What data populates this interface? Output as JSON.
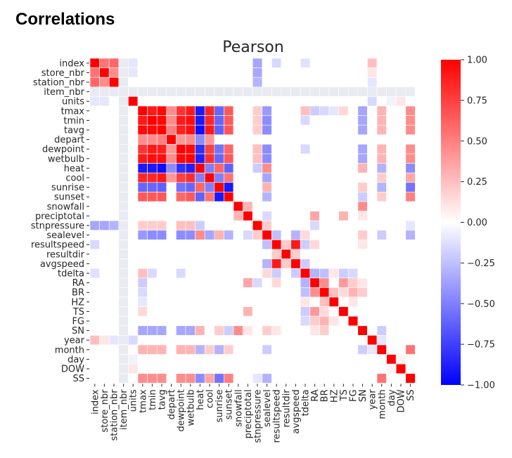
{
  "section_title": "Correlations",
  "chart_data": {
    "type": "heatmap",
    "title": "Pearson",
    "xlabel": "",
    "ylabel": "",
    "labels": [
      "index",
      "store_nbr",
      "station_nbr",
      "item_nbr",
      "units",
      "tmax",
      "tmin",
      "tavg",
      "depart",
      "dewpoint",
      "wetbulb",
      "heat",
      "cool",
      "sunrise",
      "sunset",
      "snowfall",
      "preciptotal",
      "stnpressure",
      "sealevel",
      "resultspeed",
      "resultdir",
      "avgspeed",
      "tdelta",
      "RA",
      "BR",
      "HZ",
      "TS",
      "FG",
      "SN",
      "year",
      "month",
      "day",
      "DOW",
      "SS"
    ],
    "colorbar": {
      "min": -1.0,
      "max": 1.0,
      "ticks": [
        "1.00",
        "0.75",
        "0.50",
        "0.25",
        "0.00",
        "−0.25",
        "−0.50",
        "−0.75",
        "−1.00"
      ],
      "colormap": "bwr",
      "colors": {
        "negative": "#0000ff",
        "zero": "#ffffff",
        "positive": "#ff0000",
        "missing": "#eaeaf2"
      }
    },
    "missing": [
      "item_nbr"
    ],
    "correlations": [
      [
        "index",
        "store_nbr",
        0.55
      ],
      [
        "index",
        "station_nbr",
        0.6
      ],
      [
        "store_nbr",
        "station_nbr",
        0.45
      ],
      [
        "index",
        "units",
        -0.1
      ],
      [
        "store_nbr",
        "units",
        -0.1
      ],
      [
        "index",
        "stnpressure",
        -0.35
      ],
      [
        "store_nbr",
        "stnpressure",
        -0.35
      ],
      [
        "station_nbr",
        "stnpressure",
        -0.3
      ],
      [
        "index",
        "resultspeed",
        -0.15
      ],
      [
        "index",
        "tdelta",
        -0.12
      ],
      [
        "tmax",
        "tmin",
        0.9
      ],
      [
        "tmax",
        "tavg",
        0.97
      ],
      [
        "tmax",
        "depart",
        0.45
      ],
      [
        "tmax",
        "dewpoint",
        0.8
      ],
      [
        "tmax",
        "wetbulb",
        0.9
      ],
      [
        "tmax",
        "heat",
        -0.9
      ],
      [
        "tmax",
        "cool",
        0.85
      ],
      [
        "tmax",
        "sunrise",
        -0.6
      ],
      [
        "tmax",
        "sunset",
        0.65
      ],
      [
        "tmin",
        "tavg",
        0.97
      ],
      [
        "tmin",
        "depart",
        0.45
      ],
      [
        "tmin",
        "dewpoint",
        0.9
      ],
      [
        "tmin",
        "wetbulb",
        0.95
      ],
      [
        "tmin",
        "heat",
        -0.9
      ],
      [
        "tmin",
        "cool",
        0.85
      ],
      [
        "tmin",
        "sunrise",
        -0.6
      ],
      [
        "tmin",
        "sunset",
        0.65
      ],
      [
        "tavg",
        "depart",
        0.5
      ],
      [
        "tavg",
        "dewpoint",
        0.88
      ],
      [
        "tavg",
        "wetbulb",
        0.95
      ],
      [
        "tavg",
        "heat",
        -0.95
      ],
      [
        "tavg",
        "cool",
        0.9
      ],
      [
        "tavg",
        "sunrise",
        -0.62
      ],
      [
        "tavg",
        "sunset",
        0.66
      ],
      [
        "depart",
        "dewpoint",
        0.4
      ],
      [
        "depart",
        "wetbulb",
        0.45
      ],
      [
        "depart",
        "heat",
        -0.45
      ],
      [
        "depart",
        "cool",
        0.4
      ],
      [
        "dewpoint",
        "wetbulb",
        0.97
      ],
      [
        "dewpoint",
        "heat",
        -0.82
      ],
      [
        "dewpoint",
        "cool",
        0.75
      ],
      [
        "dewpoint",
        "sunrise",
        -0.55
      ],
      [
        "dewpoint",
        "sunset",
        0.6
      ],
      [
        "wetbulb",
        "heat",
        -0.88
      ],
      [
        "wetbulb",
        "cool",
        0.82
      ],
      [
        "wetbulb",
        "sunrise",
        -0.6
      ],
      [
        "wetbulb",
        "sunset",
        0.65
      ],
      [
        "heat",
        "cool",
        -0.5
      ],
      [
        "heat",
        "sunrise",
        0.6
      ],
      [
        "heat",
        "sunset",
        -0.62
      ],
      [
        "cool",
        "sunrise",
        -0.5
      ],
      [
        "cool",
        "sunset",
        0.55
      ],
      [
        "sunrise",
        "sunset",
        -0.9
      ],
      [
        "tmax",
        "sealevel",
        -0.4
      ],
      [
        "tmin",
        "sealevel",
        -0.45
      ],
      [
        "tavg",
        "sealevel",
        -0.45
      ],
      [
        "dewpoint",
        "sealevel",
        -0.45
      ],
      [
        "wetbulb",
        "sealevel",
        -0.45
      ],
      [
        "heat",
        "sealevel",
        0.45
      ],
      [
        "cool",
        "sealevel",
        -0.35
      ],
      [
        "sunrise",
        "sealevel",
        0.3
      ],
      [
        "sunset",
        "sealevel",
        -0.3
      ],
      [
        "tmax",
        "stnpressure",
        0.2
      ],
      [
        "tmin",
        "stnpressure",
        0.2
      ],
      [
        "tavg",
        "stnpressure",
        0.2
      ],
      [
        "dewpoint",
        "stnpressure",
        0.25
      ],
      [
        "wetbulb",
        "stnpressure",
        0.25
      ],
      [
        "heat",
        "stnpressure",
        -0.2
      ],
      [
        "stnpressure",
        "sealevel",
        0.2
      ],
      [
        "tmax",
        "SN",
        -0.35
      ],
      [
        "tmin",
        "SN",
        -0.35
      ],
      [
        "tavg",
        "SN",
        -0.35
      ],
      [
        "dewpoint",
        "SN",
        -0.35
      ],
      [
        "wetbulb",
        "SN",
        -0.35
      ],
      [
        "heat",
        "SN",
        0.3
      ],
      [
        "sunrise",
        "SN",
        0.2
      ],
      [
        "sunset",
        "SN",
        -0.2
      ],
      [
        "snowfall",
        "SN",
        0.45
      ],
      [
        "tmax",
        "month",
        0.3
      ],
      [
        "tmin",
        "month",
        0.3
      ],
      [
        "tavg",
        "month",
        0.3
      ],
      [
        "dewpoint",
        "month",
        0.3
      ],
      [
        "wetbulb",
        "month",
        0.3
      ],
      [
        "heat",
        "month",
        -0.3
      ],
      [
        "cool",
        "month",
        0.2
      ],
      [
        "tmax",
        "SS",
        0.45
      ],
      [
        "tmin",
        "SS",
        0.45
      ],
      [
        "tavg",
        "SS",
        0.45
      ],
      [
        "dewpoint",
        "SS",
        0.45
      ],
      [
        "wetbulb",
        "SS",
        0.45
      ],
      [
        "heat",
        "SS",
        -0.45
      ],
      [
        "cool",
        "SS",
        0.35
      ],
      [
        "sunrise",
        "SS",
        -0.55
      ],
      [
        "sunset",
        "SS",
        0.5
      ],
      [
        "tmax",
        "tdelta",
        0.25
      ],
      [
        "tmin",
        "tdelta",
        -0.15
      ],
      [
        "dewpoint",
        "tdelta",
        -0.15
      ],
      [
        "tmax",
        "RA",
        -0.2
      ],
      [
        "tmax",
        "BR",
        -0.15
      ],
      [
        "tmax",
        "HZ",
        -0.1
      ],
      [
        "tmax",
        "TS",
        0.15
      ],
      [
        "sealevel",
        "tdelta",
        0.15
      ],
      [
        "sealevel",
        "SN",
        0.2
      ],
      [
        "sealevel",
        "month",
        -0.2
      ],
      [
        "sealevel",
        "SS",
        -0.3
      ],
      [
        "stnpressure",
        "RA",
        -0.15
      ],
      [
        "stnpressure",
        "SS",
        -0.1
      ],
      [
        "sunrise",
        "month",
        -0.3
      ],
      [
        "sunset",
        "month",
        0.2
      ],
      [
        "snowfall",
        "preciptotal",
        0.3
      ],
      [
        "preciptotal",
        "RA",
        0.35
      ],
      [
        "preciptotal",
        "TS",
        0.3
      ],
      [
        "preciptotal",
        "SN",
        0.1
      ],
      [
        "preciptotal",
        "sealevel",
        -0.15
      ],
      [
        "resultspeed",
        "avgspeed",
        0.9
      ],
      [
        "resultspeed",
        "resultdir",
        0.2
      ],
      [
        "resultdir",
        "avgspeed",
        0.2
      ],
      [
        "resultspeed",
        "sealevel",
        -0.25
      ],
      [
        "avgspeed",
        "sealevel",
        -0.3
      ],
      [
        "resultspeed",
        "tdelta",
        -0.2
      ],
      [
        "avgspeed",
        "tdelta",
        -0.2
      ],
      [
        "resultspeed",
        "RA",
        0.15
      ],
      [
        "resultspeed",
        "SN",
        0.1
      ],
      [
        "tdelta",
        "RA",
        -0.3
      ],
      [
        "tdelta",
        "BR",
        -0.25
      ],
      [
        "tdelta",
        "TS",
        -0.2
      ],
      [
        "tdelta",
        "FG",
        -0.15
      ],
      [
        "tdelta",
        "HZ",
        0.1
      ],
      [
        "RA",
        "BR",
        0.45
      ],
      [
        "RA",
        "TS",
        0.4
      ],
      [
        "RA",
        "FG",
        0.2
      ],
      [
        "RA",
        "SN",
        0.1
      ],
      [
        "BR",
        "HZ",
        0.25
      ],
      [
        "BR",
        "FG",
        0.3
      ],
      [
        "BR",
        "SN",
        0.2
      ],
      [
        "BR",
        "TS",
        0.15
      ],
      [
        "HZ",
        "FG",
        0.1
      ],
      [
        "units",
        "year",
        -0.15
      ],
      [
        "units",
        "day",
        -0.05
      ],
      [
        "units",
        "DOW",
        0.1
      ],
      [
        "store_nbr",
        "year",
        0.1
      ],
      [
        "station_nbr",
        "year",
        -0.1
      ],
      [
        "index",
        "year",
        0.25
      ],
      [
        "month",
        "SS",
        0.55
      ],
      [
        "year",
        "month",
        -0.1
      ],
      [
        "day",
        "DOW",
        0.05
      ],
      [
        "SN",
        "month",
        -0.2
      ]
    ]
  }
}
